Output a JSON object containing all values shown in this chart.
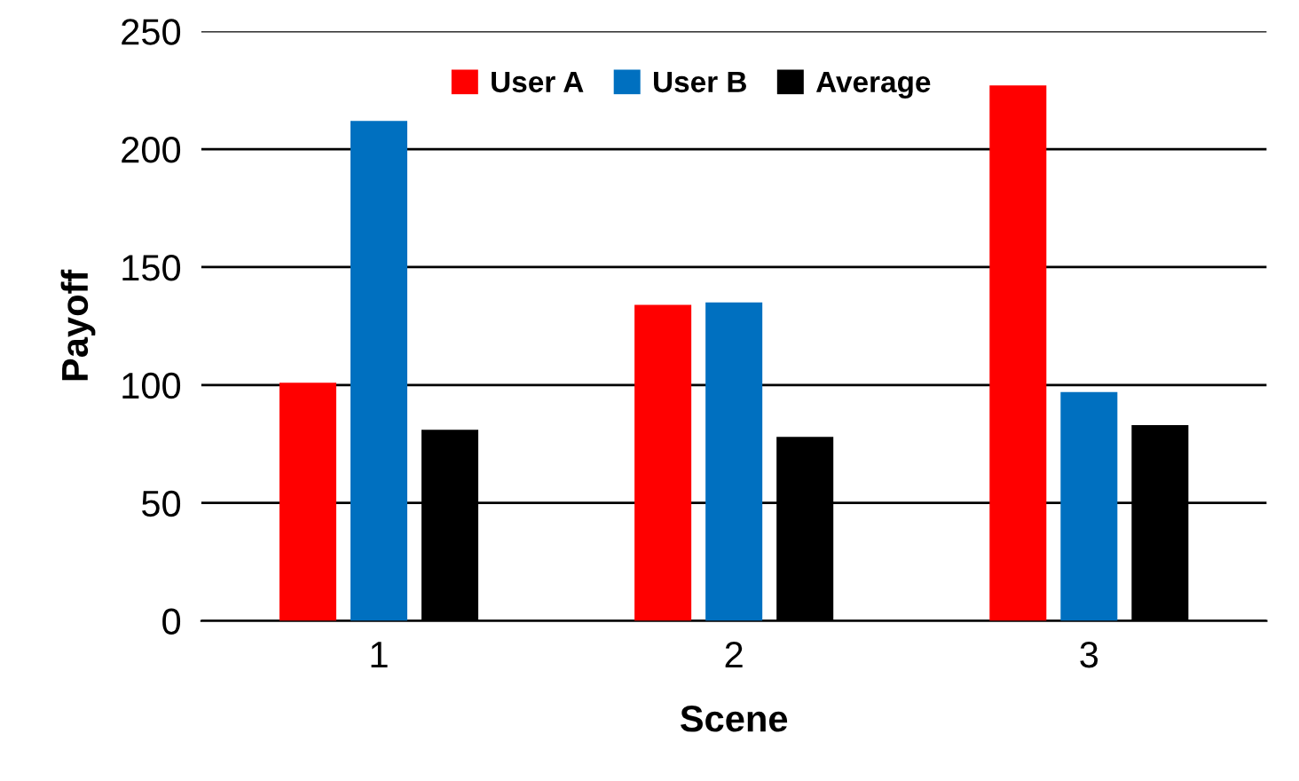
{
  "chart_data": {
    "type": "bar",
    "xlabel": "Scene",
    "ylabel": "Payoff",
    "categories": [
      "1",
      "2",
      "3"
    ],
    "series": [
      {
        "name": "User A",
        "color": "#ff0000",
        "values": [
          101,
          134,
          227
        ]
      },
      {
        "name": "User B",
        "color": "#0070c0",
        "values": [
          212,
          135,
          97
        ]
      },
      {
        "name": "Average",
        "color": "#000000",
        "values": [
          81,
          78,
          83
        ]
      }
    ],
    "ylim": [
      0,
      250
    ],
    "yticks": [
      0,
      50,
      100,
      150,
      200,
      250
    ],
    "grid": "y",
    "legend": "top"
  }
}
